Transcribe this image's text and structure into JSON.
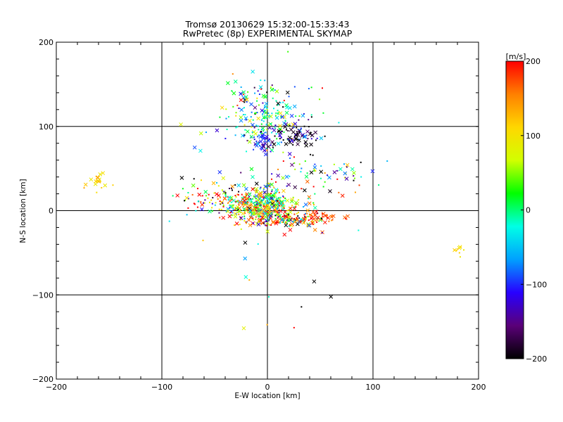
{
  "chart_data": {
    "type": "scatter",
    "title": "Tromsø 20130629 15:32:00-15:33:43",
    "subtitle": "RwPretec (8p) EXPERIMENTAL SKYMAP",
    "xlabel": "E-W location [km]",
    "ylabel": "N-S location [km]",
    "xlim": [
      -200,
      200
    ],
    "ylim": [
      -200,
      200
    ],
    "x_ticks": [
      "−200",
      "−100",
      "0",
      "100",
      "200"
    ],
    "y_ticks": [
      "−200",
      "−100",
      "0",
      "100",
      "200"
    ],
    "x_tick_values": [
      -200,
      -100,
      0,
      100,
      200
    ],
    "y_tick_values": [
      -200,
      -100,
      0,
      100,
      200
    ],
    "grid": true,
    "colorbar": {
      "unit_label": "[m/s]",
      "range": [
        -200,
        200
      ],
      "tick_values": [
        200,
        100,
        0,
        -100,
        -200
      ],
      "tick_labels": [
        "200",
        "100",
        "0",
        "−100",
        "−200"
      ],
      "colormap": [
        "#000000",
        "#5a0078",
        "#2800ff",
        "#00a0ff",
        "#00ffe6",
        "#00ff00",
        "#d2ff00",
        "#ffd700",
        "#ff8000",
        "#ff0000"
      ]
    },
    "clusters": [
      {
        "cx": -5,
        "cy": 5,
        "sx": 22,
        "sy": 10,
        "n": 240,
        "vmu": 120,
        "vsd": 90
      },
      {
        "cx": 20,
        "cy": -10,
        "sx": 20,
        "sy": 5,
        "n": 130,
        "vmu": 60,
        "vsd": 160
      },
      {
        "cx": 0,
        "cy": 12,
        "sx": 8,
        "sy": 10,
        "n": 150,
        "vmu": 40,
        "vsd": 110
      },
      {
        "cx": -25,
        "cy": 10,
        "sx": 18,
        "sy": 10,
        "n": 90,
        "vmu": 20,
        "vsd": 150
      },
      {
        "cx": 0,
        "cy": 105,
        "sx": 20,
        "sy": 12,
        "n": 130,
        "vmu": -20,
        "vsd": 60
      },
      {
        "cx": 25,
        "cy": 90,
        "sx": 12,
        "sy": 8,
        "n": 80,
        "vmu": -180,
        "vsd": 40
      },
      {
        "cx": -5,
        "cy": 80,
        "sx": 5,
        "sy": 6,
        "n": 40,
        "vmu": -110,
        "vsd": 30
      },
      {
        "cx": -10,
        "cy": 135,
        "sx": 18,
        "sy": 10,
        "n": 60,
        "vmu": -10,
        "vsd": 110
      },
      {
        "cx": 55,
        "cy": 45,
        "sx": 28,
        "sy": 12,
        "n": 60,
        "vmu": -60,
        "vsd": 150
      },
      {
        "cx": -162,
        "cy": 38,
        "sx": 6,
        "sy": 5,
        "n": 20,
        "vmu": 105,
        "vsd": 20
      },
      {
        "cx": 50,
        "cy": -10,
        "sx": 15,
        "sy": 4,
        "n": 40,
        "vmu": 180,
        "vsd": 30
      },
      {
        "cx": -60,
        "cy": 12,
        "sx": 18,
        "sy": 10,
        "n": 40,
        "vmu": 60,
        "vsd": 170
      },
      {
        "cx": 0,
        "cy": 40,
        "sx": 40,
        "sy": 80,
        "n": 70,
        "vmu": 0,
        "vsd": 170
      },
      {
        "cx": 182,
        "cy": -47,
        "sx": 3,
        "sy": 3,
        "n": 10,
        "vmu": 100,
        "vsd": 10
      }
    ]
  }
}
